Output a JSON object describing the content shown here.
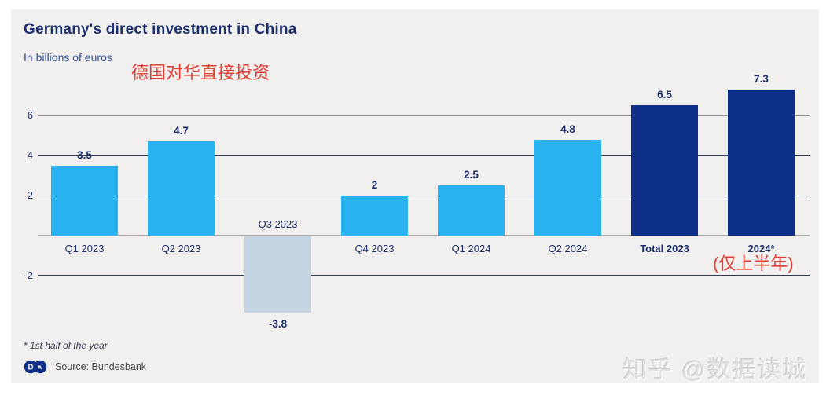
{
  "card": {
    "title": "Germany's direct investment in China",
    "subtitle": "In billions of euros",
    "annotation_cn_title": "德国对华直接投资",
    "annotation_cn_note": "(仅上半年)",
    "footnote": "* 1st half of the year",
    "source_label": "Source: Bundesbank"
  },
  "watermark": "知乎 @数据读城",
  "colors": {
    "quarter": "#29b2f0",
    "negative": "#c5d4e2",
    "total": "#0d2f88",
    "navy_text": "#1c2e6e",
    "red": "#e23b31",
    "card_bg": "#f1f0ee",
    "grid_major": "#333a4d",
    "grid_minor": "#8e9097",
    "grid_zero": "#a8a8a8"
  },
  "chart_data": {
    "type": "bar",
    "title": "Germany's direct investment in China",
    "ylabel": "In billions of euros",
    "ylim": [
      -4.5,
      8.2
    ],
    "grid": true,
    "legend": "none",
    "y_ticks": [
      {
        "value": 6,
        "label": "6",
        "style": "minor"
      },
      {
        "value": 4,
        "label": "4",
        "style": "major"
      },
      {
        "value": 2,
        "label": "2",
        "style": "major"
      },
      {
        "value": 0,
        "label": "",
        "style": "zero"
      },
      {
        "value": -2,
        "label": "-2",
        "style": "major"
      }
    ],
    "categories": [
      "Q1 2023",
      "Q2 2023",
      "Q3 2023",
      "Q4 2023",
      "Q1 2024",
      "Q2 2024",
      "Total 2023",
      "2024*"
    ],
    "values": [
      3.5,
      4.7,
      -3.8,
      2,
      2.5,
      4.8,
      6.5,
      7.3
    ],
    "bars": [
      {
        "label": "Q1 2023",
        "value": 3.5,
        "display": "3.5",
        "type": "quarter",
        "bold": false
      },
      {
        "label": "Q2 2023",
        "value": 4.7,
        "display": "4.7",
        "type": "quarter",
        "bold": false
      },
      {
        "label": "Q3 2023",
        "value": -3.8,
        "display": "-3.8",
        "type": "negative",
        "bold": false
      },
      {
        "label": "Q4 2023",
        "value": 2,
        "display": "2",
        "type": "quarter",
        "bold": false
      },
      {
        "label": "Q1 2024",
        "value": 2.5,
        "display": "2.5",
        "type": "quarter",
        "bold": false
      },
      {
        "label": "Q2 2024",
        "value": 4.8,
        "display": "4.8",
        "type": "quarter",
        "bold": false
      },
      {
        "label": "Total 2023",
        "value": 6.5,
        "display": "6.5",
        "type": "total",
        "bold": true
      },
      {
        "label": "2024*",
        "value": 7.3,
        "display": "7.3",
        "type": "total",
        "bold": true
      }
    ]
  }
}
